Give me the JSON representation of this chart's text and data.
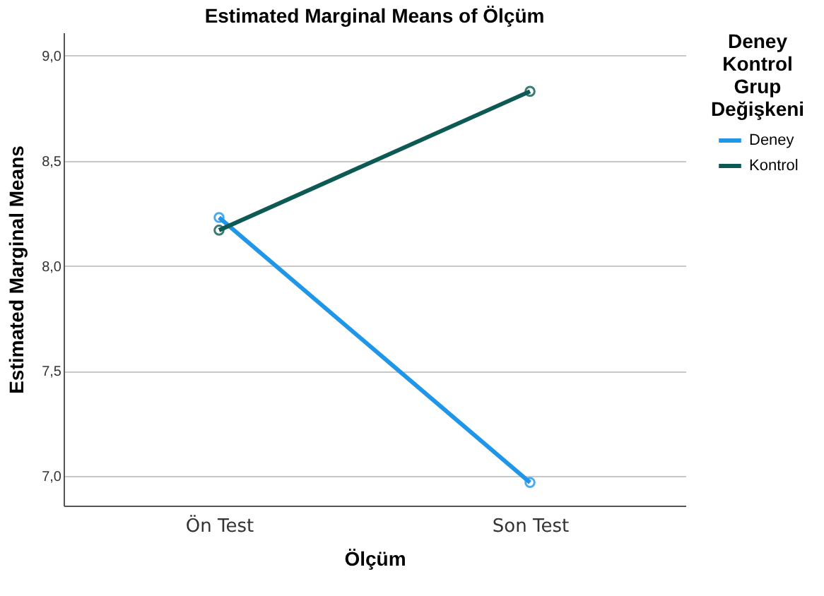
{
  "chart_data": {
    "type": "line",
    "title": "Estimated Marginal Means of Ölçüm",
    "xlabel": "Ölçüm",
    "ylabel": "Estimated Marginal Means",
    "legend_title": "Deney Kontrol Grup Değişkeni",
    "categories": [
      "Ön Test",
      "Son Test"
    ],
    "series": [
      {
        "name": "Deney",
        "color": "#1f96e8",
        "values": [
          8.23,
          6.97
        ]
      },
      {
        "name": "Kontrol",
        "color": "#0d5a55",
        "values": [
          8.17,
          8.83
        ]
      }
    ],
    "ylim": [
      6.86,
      9.11
    ],
    "yticks": [
      {
        "value": 7,
        "label": "7,0"
      },
      {
        "value": 7.5,
        "label": "7,5"
      },
      {
        "value": 8,
        "label": "8,0"
      },
      {
        "value": 8.5,
        "label": "8,5"
      },
      {
        "value": 9,
        "label": "9,0"
      }
    ],
    "grid": "y",
    "legend": "top right",
    "marker": "circle",
    "line_style": "solid"
  }
}
